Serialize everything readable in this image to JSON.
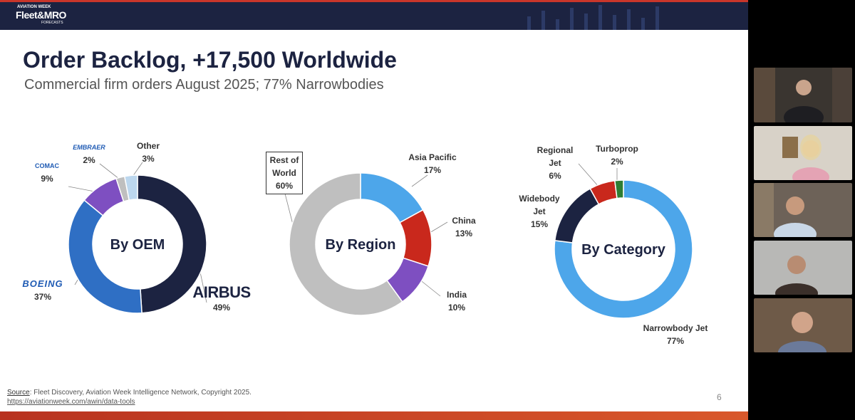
{
  "header": {
    "brand_top": "AVIATION WEEK",
    "brand": "Fleet&MRO",
    "brand_bottom": "FORECASTS"
  },
  "slide": {
    "title": "Order Backlog, +17,500 Worldwide",
    "subtitle": "Commercial firm orders August 2025; 77% Narrowbodies",
    "source_label": "Source",
    "source_text": ": Fleet Discovery, Aviation Week Intelligence Network, Copyright 2025.",
    "link": "https://aviationweek.com/awin/data-tools",
    "page_number": 6
  },
  "chart_data": [
    {
      "type": "donut",
      "title": "By OEM",
      "categories": [
        "AIRBUS",
        "BOEING",
        "COMAC",
        "EMBRAER",
        "Other"
      ],
      "values": [
        49,
        37,
        9,
        2,
        3
      ],
      "value_labels": [
        "49%",
        "37%",
        "9%",
        "2%",
        "3%"
      ],
      "colors": [
        "#1c2341",
        "#2f6fc4",
        "#7e4fc1",
        "#bfbfbf",
        "#bcd7ee"
      ]
    },
    {
      "type": "donut",
      "title": "By Region",
      "categories": [
        "Asia Pacific",
        "China",
        "India",
        "Rest of World"
      ],
      "values": [
        17,
        13,
        10,
        60
      ],
      "value_labels": [
        "17%",
        "13%",
        "10%",
        "60%"
      ],
      "colors": [
        "#4da6ea",
        "#c9281c",
        "#7e4fc1",
        "#bfbfbf"
      ]
    },
    {
      "type": "donut",
      "title": "By Category",
      "categories": [
        "Narrowbody Jet",
        "Widebody Jet",
        "Regional Jet",
        "Turboprop"
      ],
      "values": [
        77,
        15,
        6,
        2
      ],
      "value_labels": [
        "77%",
        "15%",
        "6%",
        "2%"
      ],
      "colors": [
        "#4da6ea",
        "#1c2341",
        "#c9281c",
        "#2e7d32"
      ]
    }
  ]
}
